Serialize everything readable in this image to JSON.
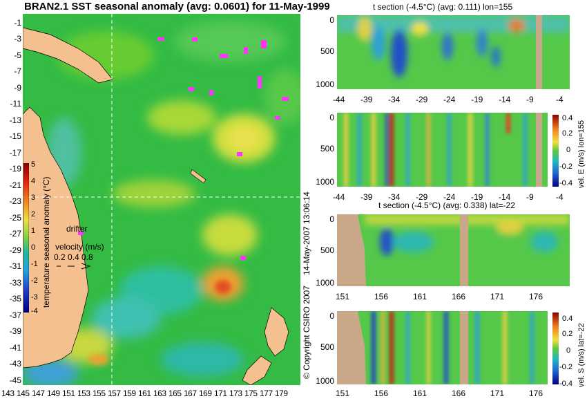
{
  "main_map": {
    "title": "BRAN2.1 SST seasonal anomaly (avg: 0.0601) for 11-May-1999",
    "y_labels": [
      "-1",
      "-3",
      "-5",
      "-7",
      "-9",
      "-11",
      "-13",
      "-15",
      "-17",
      "-19",
      "-21",
      "-23",
      "-25",
      "-27",
      "-29",
      "-31",
      "-33",
      "-35",
      "-37",
      "-39",
      "-41",
      "-43",
      "-45"
    ],
    "x_labels": [
      "143",
      "145",
      "147",
      "149",
      "151",
      "153",
      "155",
      "157",
      "159",
      "161",
      "163",
      "165",
      "167",
      "169",
      "171",
      "173",
      "175",
      "177",
      "179"
    ],
    "colorbar_label": "temperature seasonal anomaly (°C)",
    "colorbar_ticks": [
      "5",
      "4",
      "3",
      "2",
      "1",
      "0",
      "-1",
      "-2",
      "-3",
      "-4"
    ],
    "drifter_label": "drifter",
    "velocity_label": "velocity (m/s)",
    "velocity_scale": "0.2 0.4 0.8"
  },
  "panel1": {
    "title": "t section (-4.5°C) (avg: 0.111) lon=155",
    "y_labels": [
      "0",
      "500",
      "1000"
    ],
    "x_labels": [
      "-44",
      "-39",
      "-34",
      "-29",
      "-24",
      "-19",
      "-14",
      "-9",
      "-4"
    ]
  },
  "panel2": {
    "y_labels": [
      "0",
      "500",
      "1000"
    ],
    "x_labels": [
      "-44",
      "-39",
      "-34",
      "-29",
      "-24",
      "-19",
      "-14",
      "-9",
      "-4"
    ],
    "colorbar_ticks": [
      "0.4",
      "0.2",
      "0",
      "-0.2",
      "-0.4"
    ],
    "colorbar_label": "vel. E (m/s) lon=155"
  },
  "panel3": {
    "title": "t section (-4.5°C) (avg: 0.338) lat=-22",
    "y_labels": [
      "0",
      "500",
      "1000"
    ],
    "x_labels": [
      "151",
      "156",
      "161",
      "166",
      "171",
      "176"
    ]
  },
  "panel4": {
    "y_labels": [
      "0",
      "500",
      "1000"
    ],
    "x_labels": [
      "151",
      "156",
      "161",
      "166",
      "171",
      "176"
    ],
    "colorbar_ticks": [
      "0.4",
      "0.2",
      "0",
      "-0.2",
      "-0.4"
    ],
    "colorbar_label": "vel. S (m/s) lat=-22"
  },
  "copyright": "© Copyright CSIRO 2007",
  "timestamp": "14-May-2007 13:06:14"
}
